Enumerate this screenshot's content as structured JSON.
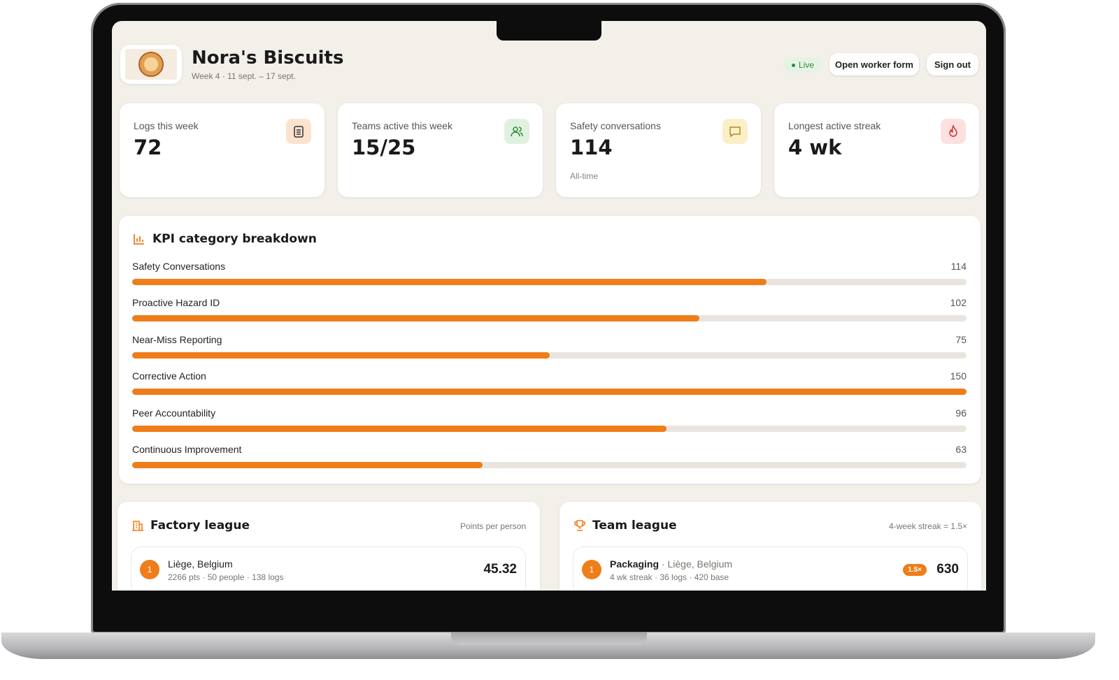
{
  "header": {
    "title": "Nora's Biscuits",
    "subtitle": "Week 4 · 11 sept. – 17 sept.",
    "status": "Live",
    "buttons": [
      "Open worker form",
      "Sign out"
    ]
  },
  "stats": [
    {
      "label": "Logs this week",
      "value": 72
    },
    {
      "label": "Teams active this week",
      "value": "15/25"
    },
    {
      "label": "Safety conversations",
      "value": 114,
      "note": "All-time"
    },
    {
      "label": "Longest active streak",
      "value": "4 wk"
    }
  ],
  "kpi": {
    "title": "KPI category breakdown",
    "rows": [
      {
        "label": "Safety Conversations",
        "value": 114
      },
      {
        "label": "Proactive Hazard ID",
        "value": 102
      },
      {
        "label": "Near-Miss Reporting",
        "value": 75
      },
      {
        "label": "Corrective Action",
        "value": 150
      },
      {
        "label": "Peer Accountability",
        "value": 96
      },
      {
        "label": "Continuous Improvement",
        "value": 63
      }
    ]
  },
  "factory_league": {
    "title": "Factory league",
    "note": "Points per person",
    "rows": [
      {
        "rank": 1,
        "name": "Liège, Belgium",
        "detail": "2266 pts · 50 people · 138 logs",
        "score": 45.32
      }
    ]
  },
  "team_league": {
    "title": "Team league",
    "note": "4-week streak = 1.5×",
    "rows": [
      {
        "rank": 1,
        "team": "Packaging",
        "location": "· Liège, Belgium",
        "detail": "4 wk streak · 36 logs · 420 base",
        "multiplier": "1.5×",
        "score": 630
      }
    ]
  }
}
